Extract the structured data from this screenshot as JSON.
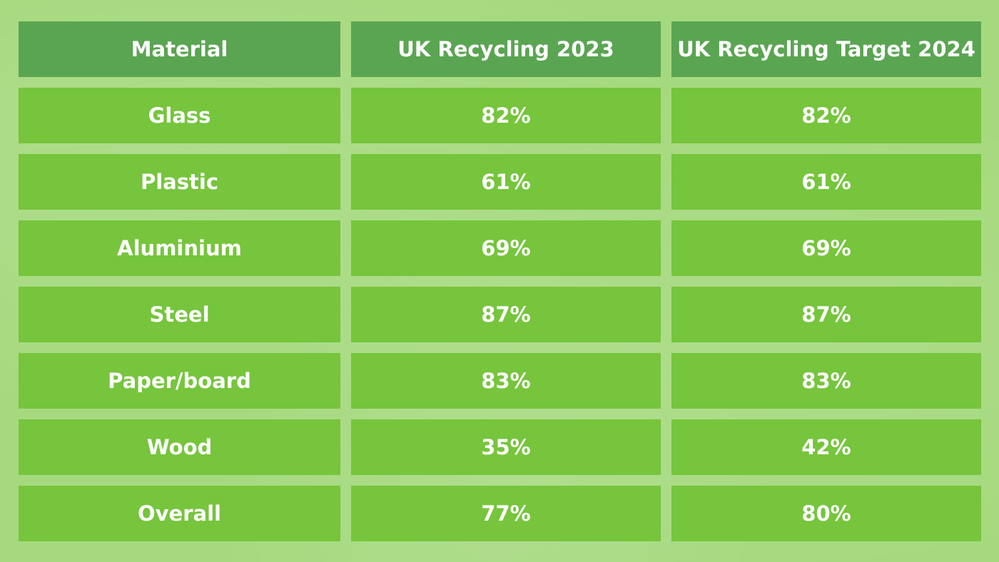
{
  "colors": {
    "background": "#a6d97f",
    "header_fill": "#5aa552",
    "cell_fill": "#76c53c",
    "text": "#ffffff"
  },
  "table": {
    "headers": [
      "Material",
      "UK Recycling 2023",
      "UK Recycling Target 2024"
    ],
    "rows": [
      [
        "Glass",
        "82%",
        "82%"
      ],
      [
        "Plastic",
        "61%",
        "61%"
      ],
      [
        "Aluminium",
        "69%",
        "69%"
      ],
      [
        "Steel",
        "87%",
        "87%"
      ],
      [
        "Paper/board",
        "83%",
        "83%"
      ],
      [
        "Wood",
        "35%",
        "42%"
      ],
      [
        "Overall",
        "77%",
        "80%"
      ]
    ]
  }
}
